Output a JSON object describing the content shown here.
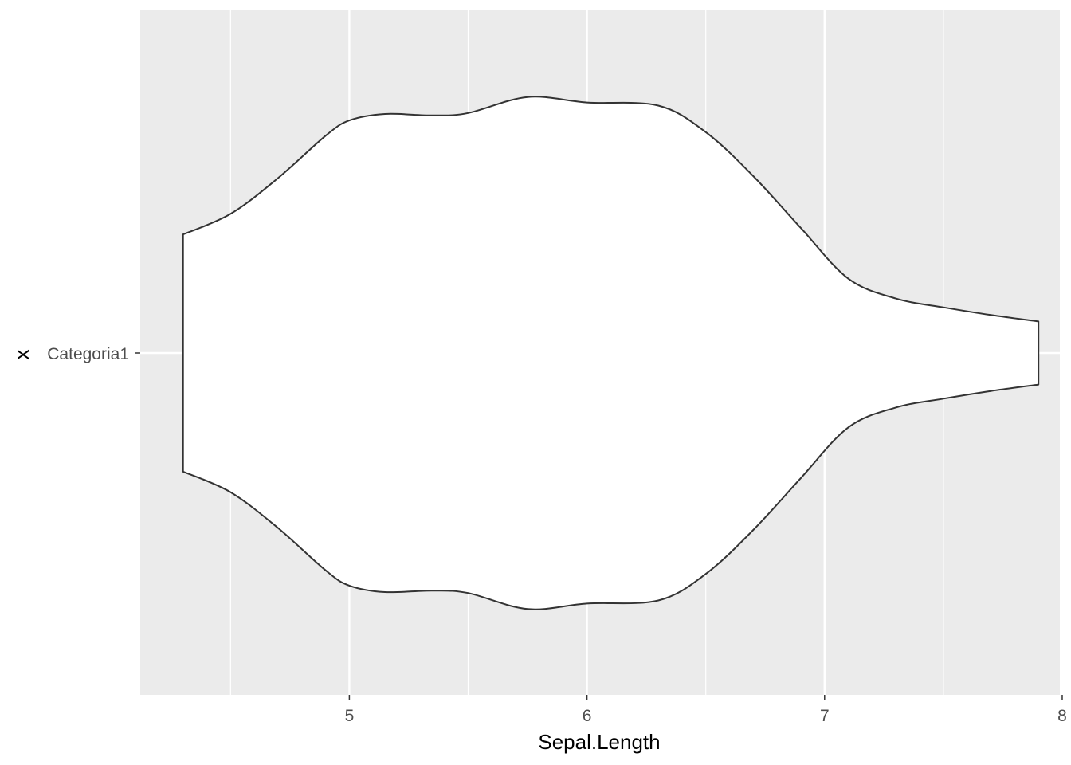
{
  "chart_data": {
    "type": "violin",
    "orientation": "horizontal",
    "title": "",
    "xlabel": "Sepal.Length",
    "ylabel": "x",
    "xlim": [
      4.12,
      7.99
    ],
    "x_ticks": [
      5,
      6,
      7,
      8
    ],
    "categories": [
      "Categoria1"
    ],
    "grid": true,
    "colors": {
      "panel": "#ebebeb",
      "grid": "#ffffff",
      "violin_fill": "#ffffff",
      "violin_stroke": "#333333",
      "tick_text": "#4d4d4d",
      "title_text": "#000000"
    },
    "series": [
      {
        "category": "Categoria1",
        "range": [
          4.3,
          7.9
        ],
        "density_profile": [
          {
            "x": 4.3,
            "half_width": 0.496
          },
          {
            "x": 4.5,
            "half_width": 0.582
          },
          {
            "x": 4.7,
            "half_width": 0.732
          },
          {
            "x": 4.9,
            "half_width": 0.909
          },
          {
            "x": 5.0,
            "half_width": 0.973
          },
          {
            "x": 5.15,
            "half_width": 1.0
          },
          {
            "x": 5.35,
            "half_width": 0.994
          },
          {
            "x": 5.5,
            "half_width": 1.004
          },
          {
            "x": 5.75,
            "half_width": 1.071
          },
          {
            "x": 6.0,
            "half_width": 1.048
          },
          {
            "x": 6.3,
            "half_width": 1.035
          },
          {
            "x": 6.5,
            "half_width": 0.924
          },
          {
            "x": 6.7,
            "half_width": 0.74
          },
          {
            "x": 6.9,
            "half_width": 0.523
          },
          {
            "x": 7.1,
            "half_width": 0.311
          },
          {
            "x": 7.3,
            "half_width": 0.228
          },
          {
            "x": 7.5,
            "half_width": 0.191
          },
          {
            "x": 7.7,
            "half_width": 0.159
          },
          {
            "x": 7.9,
            "half_width": 0.132
          }
        ]
      }
    ]
  }
}
